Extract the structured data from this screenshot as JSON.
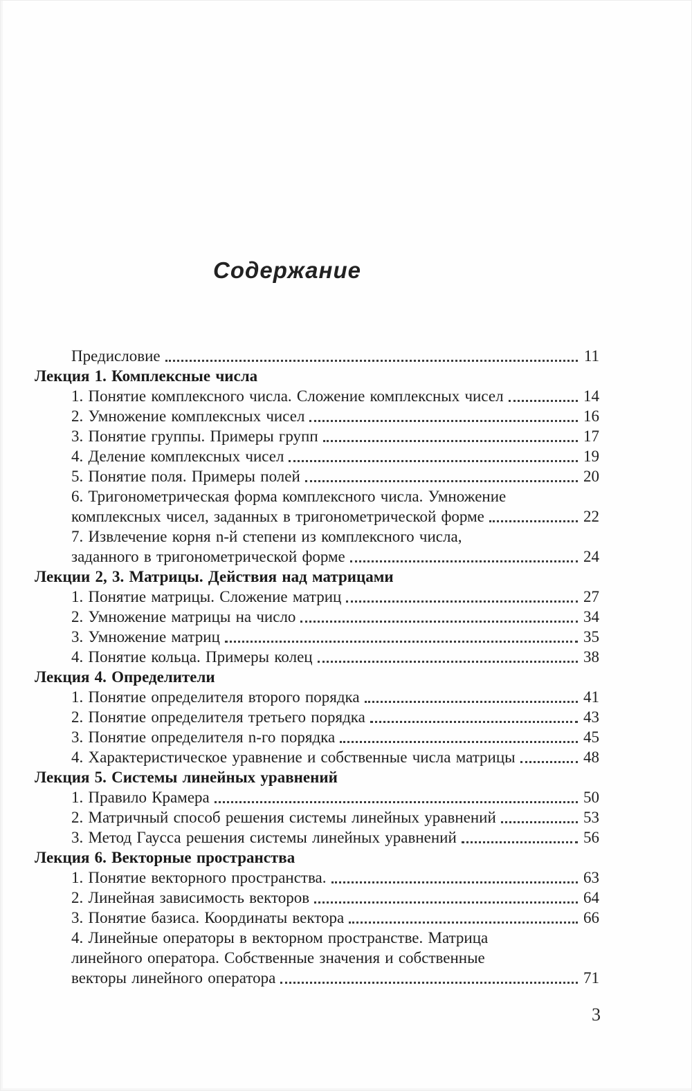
{
  "document": {
    "title": "Содержание",
    "page_number": "3"
  },
  "toc": {
    "entries": [
      {
        "kind": "item",
        "lines": [
          "Предисловие"
        ],
        "page": "11"
      },
      {
        "kind": "header",
        "lines": [
          "Лекция 1. Комплексные числа"
        ],
        "page": ""
      },
      {
        "kind": "item",
        "lines": [
          "1. Понятие комплексного числа. Сложение комплексных чисел"
        ],
        "page": "14"
      },
      {
        "kind": "item",
        "lines": [
          "2. Умножение комплексных чисел"
        ],
        "page": "16"
      },
      {
        "kind": "item",
        "lines": [
          "3. Понятие группы. Примеры групп"
        ],
        "page": "17"
      },
      {
        "kind": "item",
        "lines": [
          "4. Деление комплексных чисел"
        ],
        "page": "19"
      },
      {
        "kind": "item",
        "lines": [
          "5. Понятие поля. Примеры полей"
        ],
        "page": "20"
      },
      {
        "kind": "item",
        "lines": [
          "6. Тригонометрическая форма комплексного числа. Умножение",
          "комплексных чисел, заданных в тригонометрической форме"
        ],
        "page": "22"
      },
      {
        "kind": "item",
        "lines": [
          "7. Извлечение корня n-й степени из комплексного числа,",
          "заданного в тригонометрической форме"
        ],
        "page": "24"
      },
      {
        "kind": "header",
        "lines": [
          "Лекции 2, 3. Матрицы. Действия над матрицами"
        ],
        "page": ""
      },
      {
        "kind": "item",
        "lines": [
          "1. Понятие матрицы. Сложение матриц"
        ],
        "page": "27"
      },
      {
        "kind": "item",
        "lines": [
          "2. Умножение матрицы на число"
        ],
        "page": "34"
      },
      {
        "kind": "item",
        "lines": [
          "3. Умножение матриц"
        ],
        "page": "35"
      },
      {
        "kind": "item",
        "lines": [
          "4. Понятие кольца. Примеры колец"
        ],
        "page": "38"
      },
      {
        "kind": "header",
        "lines": [
          "Лекция 4. Определители"
        ],
        "page": ""
      },
      {
        "kind": "item",
        "lines": [
          "1. Понятие определителя второго порядка"
        ],
        "page": "41"
      },
      {
        "kind": "item",
        "lines": [
          "2. Понятие определителя третьего порядка"
        ],
        "page": "43"
      },
      {
        "kind": "item",
        "lines": [
          "3. Понятие определителя n-го порядка"
        ],
        "page": "45"
      },
      {
        "kind": "item",
        "lines": [
          "4. Характеристическое уравнение и собственные числа матрицы"
        ],
        "page": "48"
      },
      {
        "kind": "header",
        "lines": [
          "Лекция 5. Системы линейных уравнений"
        ],
        "page": ""
      },
      {
        "kind": "item",
        "lines": [
          "1. Правило Крамера"
        ],
        "page": "50"
      },
      {
        "kind": "item",
        "lines": [
          "2. Матричный способ решения системы линейных уравнений"
        ],
        "page": "53"
      },
      {
        "kind": "item",
        "lines": [
          "3. Метод Гаусса решения системы линейных уравнений"
        ],
        "page": "56"
      },
      {
        "kind": "header",
        "lines": [
          "Лекция 6. Векторные пространства"
        ],
        "page": ""
      },
      {
        "kind": "item",
        "lines": [
          "1. Понятие векторного пространства."
        ],
        "page": "63"
      },
      {
        "kind": "item",
        "lines": [
          "2. Линейная зависимость векторов"
        ],
        "page": "64"
      },
      {
        "kind": "item",
        "lines": [
          "3. Понятие базиса. Координаты вектора"
        ],
        "page": "66"
      },
      {
        "kind": "item",
        "lines": [
          "4. Линейные операторы в векторном пространстве. Матрица",
          "линейного оператора. Собственные значения и собственные",
          "векторы линейного оператора"
        ],
        "page": "71"
      }
    ]
  }
}
